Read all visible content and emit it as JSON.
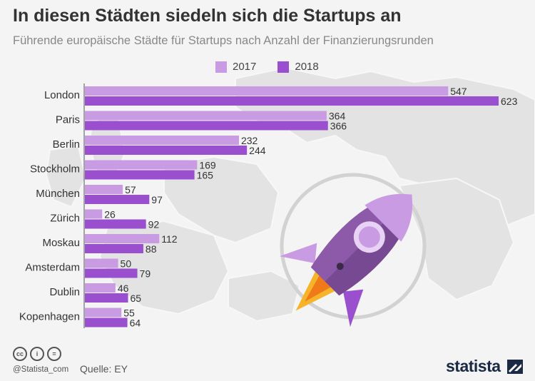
{
  "header": {
    "title": "In diesen Städten siedeln sich die Startups an",
    "subtitle": "Führende europäische Städte für Startups nach Anzahl der Finanzierungsrunden"
  },
  "legend": {
    "items": [
      {
        "label": "2017",
        "color": "#c89be3"
      },
      {
        "label": "2018",
        "color": "#9a4fcf"
      }
    ]
  },
  "chart_data": {
    "type": "bar",
    "orientation": "horizontal",
    "title": "In diesen Städten siedeln sich die Startups an",
    "subtitle": "Führende europäische Städte für Startups nach Anzahl der Finanzierungsrunden",
    "categories": [
      "London",
      "Paris",
      "Berlin",
      "Stockholm",
      "München",
      "Zürich",
      "Moskau",
      "Amsterdam",
      "Dublin",
      "Kopenhagen"
    ],
    "series": [
      {
        "name": "2017",
        "color": "#c89be3",
        "values": [
          547,
          364,
          232,
          169,
          57,
          26,
          112,
          50,
          46,
          55
        ]
      },
      {
        "name": "2018",
        "color": "#9a4fcf",
        "values": [
          623,
          366,
          244,
          165,
          97,
          92,
          88,
          79,
          65,
          64
        ]
      }
    ],
    "xlim": [
      0,
      623
    ],
    "grid": false,
    "legend_position": "top"
  },
  "footer": {
    "license_icons": [
      "cc",
      "by",
      "nd"
    ],
    "handle": "@Statista_com",
    "source": "Quelle: EY",
    "brand": "statista"
  }
}
